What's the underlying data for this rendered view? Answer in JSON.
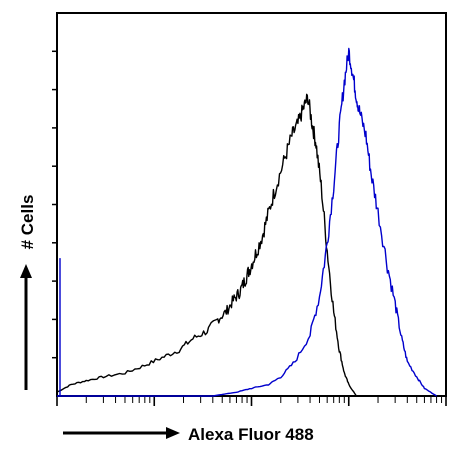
{
  "chart_data": {
    "type": "line",
    "xlabel": "Alexa Fluor 488",
    "ylabel": "# Cells",
    "xscale": "log",
    "xlim": [
      1,
      10000
    ],
    "ylim": [
      0,
      100
    ],
    "grid": false,
    "legend": "none",
    "series": [
      {
        "color": "#000000",
        "x": [
          1,
          1.4,
          2,
          3,
          5,
          8,
          12,
          18,
          25,
          35,
          45,
          55,
          65,
          75,
          85,
          95,
          110,
          130,
          150,
          180,
          220,
          260,
          300,
          340,
          380,
          420,
          460,
          520,
          600,
          700,
          800,
          900,
          1000,
          1200
        ],
        "y": [
          1,
          3,
          4,
          5,
          6,
          8,
          10,
          12,
          15,
          17,
          20,
          22,
          25,
          27,
          30,
          33,
          37,
          42,
          48,
          55,
          62,
          68,
          71,
          75,
          78,
          71,
          66,
          55,
          38,
          22,
          12,
          6,
          3,
          0
        ]
      },
      {
        "color": "#0000cc",
        "x": [
          1,
          2,
          5,
          10,
          20,
          40,
          70,
          100,
          150,
          200,
          280,
          400,
          500,
          600,
          700,
          800,
          900,
          1000,
          1100,
          1200,
          1300,
          1500,
          1700,
          2000,
          2500,
          3000,
          3500,
          4000,
          5000,
          6000,
          8000
        ],
        "y": [
          0,
          0,
          0,
          0,
          0,
          0,
          1,
          2,
          3,
          5,
          9,
          16,
          26,
          40,
          55,
          70,
          82,
          90,
          84,
          78,
          74,
          68,
          58,
          48,
          34,
          24,
          15,
          9,
          5,
          2,
          0
        ]
      }
    ]
  }
}
